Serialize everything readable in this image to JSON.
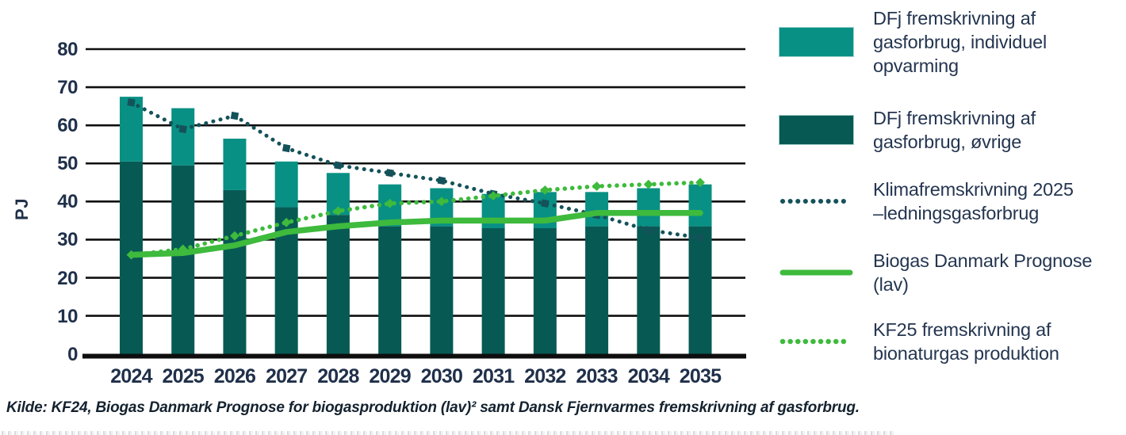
{
  "y_axis_title": "PJ",
  "source_note": "Kilde: KF24, Biogas Danmark Prognose for biogasproduktion (lav)² samt Dansk Fjernvarmes fremskrivning af gasforbrug.",
  "colors": {
    "teal_light": "#089084",
    "teal_dark": "#075a54",
    "klima_dark": "#14525a",
    "green": "#3eba3d",
    "gridline": "#0e0e0e",
    "text": "#20304a"
  },
  "legend": [
    {
      "key": "individuel",
      "type": "bar-light",
      "label": "DFj fremskrivning af\ngasforbrug, individuel\nopvarming"
    },
    {
      "key": "ovrige",
      "type": "bar-dark",
      "label": "DFj fremskrivning af\ngasforbrug, øvrige"
    },
    {
      "key": "klima",
      "type": "dotted-dark",
      "label": "Klimafremskrivning 2025\n–ledningsgasforbrug"
    },
    {
      "key": "biogas",
      "type": "line-green",
      "label": "Biogas Danmark Prognose\n(lav)"
    },
    {
      "key": "kf25",
      "type": "dotted-green",
      "label": "KF25 fremskrivning af\nbionaturgas produktion"
    }
  ],
  "chart_data": {
    "type": "bar",
    "subtype": "stacked-bars-with-lines",
    "title": "",
    "xlabel": "",
    "ylabel": "PJ",
    "ylim": [
      0,
      80
    ],
    "yticks": [
      0,
      10,
      20,
      30,
      40,
      50,
      60,
      70,
      80
    ],
    "grid": "horizontal",
    "legend_position": "right",
    "categories": [
      "2024",
      "2025",
      "2026",
      "2027",
      "2028",
      "2029",
      "2030",
      "2031",
      "2032",
      "2033",
      "2034",
      "2035"
    ],
    "series": [
      {
        "name": "DFj fremskrivning af gasforbrug, øvrige",
        "type": "bar-stack-bottom",
        "color": "#075a54",
        "values": [
          50.5,
          49.5,
          43,
          38.5,
          36.5,
          33.5,
          33.5,
          33,
          33,
          33.5,
          33.5,
          33.5
        ]
      },
      {
        "name": "DFj fremskrivning af gasforbrug, individuel opvarming",
        "type": "bar-stack-top",
        "color": "#089084",
        "values": [
          17,
          15,
          13.5,
          12,
          11,
          11,
          10,
          9,
          9.5,
          9,
          10,
          11
        ]
      },
      {
        "name": "Klimafremskrivning 2025 –ledningsgasforbrug",
        "type": "dotted-line",
        "color": "#14525a",
        "values": [
          66,
          59,
          62.5,
          54,
          49.5,
          47.5,
          45.5,
          42,
          39.5,
          36.5,
          32.5,
          30.5
        ]
      },
      {
        "name": "Biogas Danmark Prognose (lav)",
        "type": "line",
        "color": "#3eba3d",
        "values": [
          26,
          26.5,
          28.5,
          32,
          33.5,
          34.5,
          35,
          35,
          35,
          37,
          37,
          37
        ]
      },
      {
        "name": "KF25 fremskrivning af bionaturgas produktion",
        "type": "dotted-line",
        "color": "#3eba3d",
        "values": [
          26,
          27.5,
          31,
          34.5,
          37.5,
          39.5,
          40,
          41.5,
          43,
          44,
          44.5,
          45
        ]
      }
    ],
    "stacked_totals": [
      67.5,
      64.5,
      56.5,
      50.5,
      47.5,
      44.5,
      43.5,
      42,
      42.5,
      42.5,
      43.5,
      44.5
    ]
  }
}
